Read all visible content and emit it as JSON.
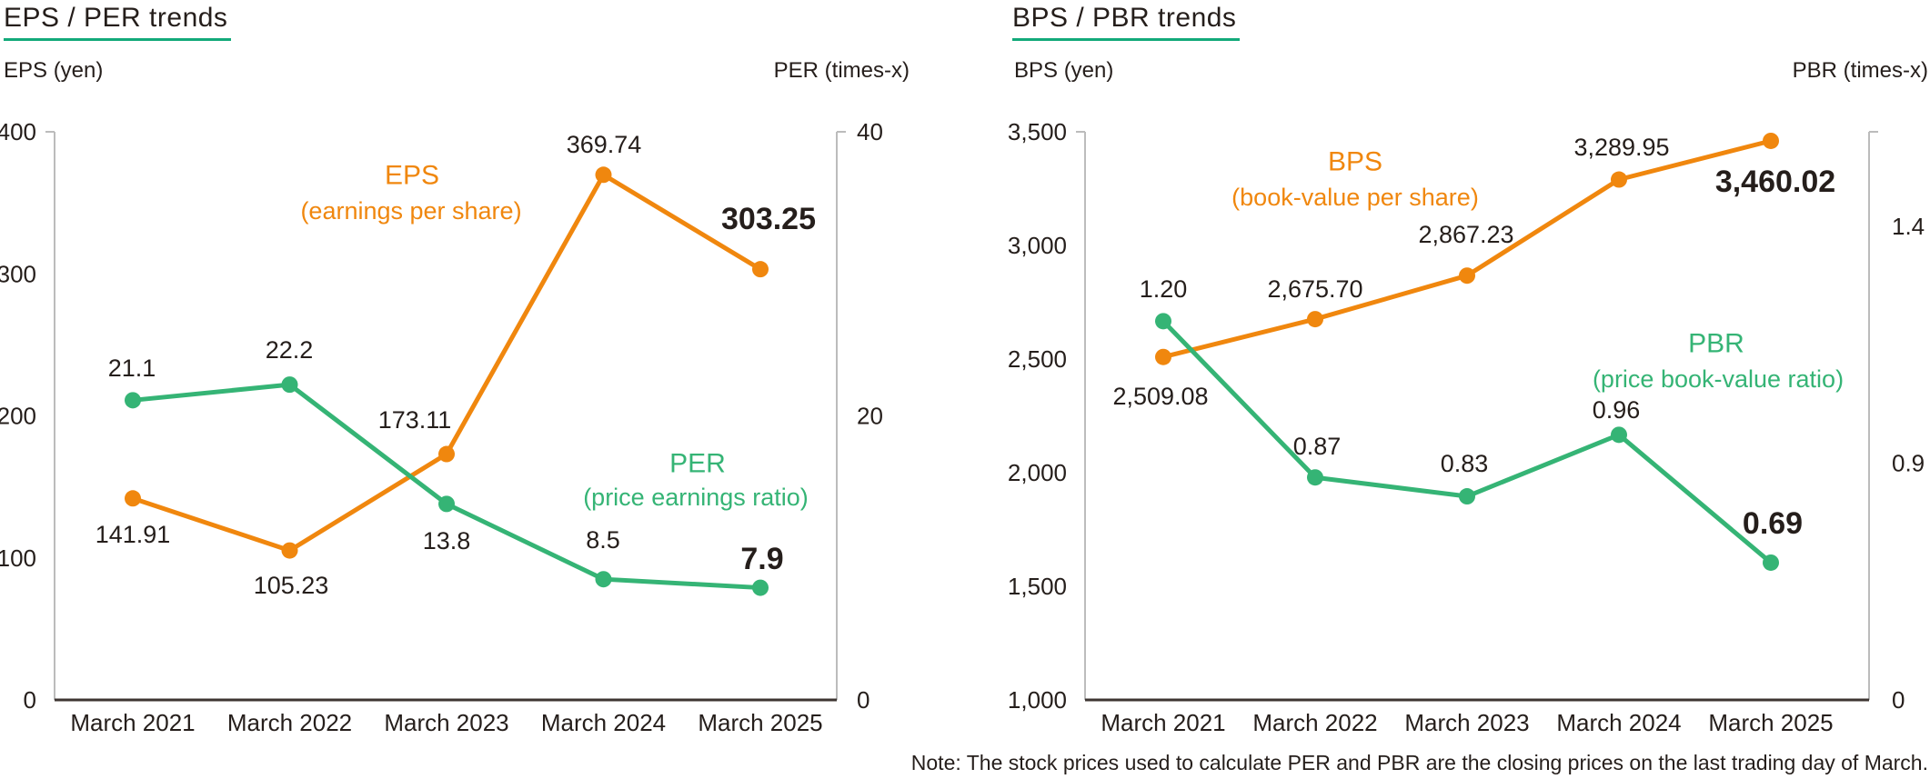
{
  "page": {
    "note": "Note: The stock prices used to calculate PER and PBR are the closing prices on the last trading day of March.",
    "colors": {
      "orange": "#f0870e",
      "green": "#35b475",
      "underline_green": "#12a97a",
      "text_dark": "#251e1b",
      "axis_gray": "#bcbcbc",
      "axis_dark": "#3d3532"
    }
  },
  "chart_data": [
    {
      "id": "eps-per",
      "type": "line",
      "title": "EPS / PER trends",
      "left_axis_label": "EPS (yen)",
      "right_axis_label": "PER (times-x)",
      "categories": [
        "March 2021",
        "March 2022",
        "March 2023",
        "March 2024",
        "March 2025"
      ],
      "left_axis": {
        "range": [
          0,
          400
        ],
        "ticks": [
          {
            "label": "400",
            "value": 400
          },
          {
            "label": "300",
            "value": 300
          },
          {
            "label": "200",
            "value": 200
          },
          {
            "label": "100",
            "value": 100
          },
          {
            "label": "0",
            "value": 0
          }
        ]
      },
      "right_axis": {
        "range": [
          0,
          40
        ],
        "ticks": [
          {
            "label": "40",
            "value": 40
          },
          {
            "label": "20",
            "value": 20
          },
          {
            "label": "0",
            "value": 0
          }
        ]
      },
      "grid": false,
      "series": [
        {
          "name": "EPS",
          "legend_main": "EPS",
          "legend_sub": "(earnings per share)",
          "axis": "left",
          "color": "orange",
          "values": [
            141.91,
            105.23,
            173.11,
            369.74,
            303.25
          ],
          "labels": [
            {
              "text": "141.91",
              "bold": false
            },
            {
              "text": "105.23",
              "bold": false
            },
            {
              "text": "173.11",
              "bold": false
            },
            {
              "text": "369.74",
              "bold": false
            },
            {
              "text": "303.25",
              "bold": true
            }
          ]
        },
        {
          "name": "PER",
          "legend_main": "PER",
          "legend_sub": "(price earnings ratio)",
          "axis": "right",
          "color": "green",
          "values": [
            21.1,
            22.2,
            13.8,
            8.5,
            7.9
          ],
          "labels": [
            {
              "text": "21.1",
              "bold": false
            },
            {
              "text": "22.2",
              "bold": false
            },
            {
              "text": "13.8",
              "bold": false
            },
            {
              "text": "8.5",
              "bold": false
            },
            {
              "text": "7.9",
              "bold": true
            }
          ]
        }
      ]
    },
    {
      "id": "bps-pbr",
      "type": "line",
      "title": "BPS / PBR trends",
      "left_axis_label": "BPS (yen)",
      "right_axis_label": "PBR (times-x)",
      "categories": [
        "March 2021",
        "March 2022",
        "March 2023",
        "March 2024",
        "March 2025"
      ],
      "left_axis": {
        "range": [
          1000,
          3500
        ],
        "ticks": [
          {
            "label": "3,500",
            "value": 3500
          },
          {
            "label": "3,000",
            "value": 3000
          },
          {
            "label": "2,500",
            "value": 2500
          },
          {
            "label": "2,000",
            "value": 2000
          },
          {
            "label": "1,500",
            "value": 1500
          },
          {
            "label": "1,000",
            "value": 1000
          }
        ]
      },
      "right_axis": {
        "range": [
          0.4,
          1.6
        ],
        "ticks": [
          {
            "label": "1.4",
            "value": 1.4
          },
          {
            "label": "0.9",
            "value": 0.9
          },
          {
            "label": "0",
            "value": 0,
            "pin_bottom": true
          }
        ]
      },
      "grid": false,
      "series": [
        {
          "name": "BPS",
          "legend_main": "BPS",
          "legend_sub": "(book-value per share)",
          "axis": "left",
          "color": "orange",
          "values": [
            2509.08,
            2675.7,
            2867.23,
            3289.95,
            3460.02
          ],
          "labels": [
            {
              "text": "2,509.08",
              "bold": false
            },
            {
              "text": "2,675.70",
              "bold": false
            },
            {
              "text": "2,867.23",
              "bold": false
            },
            {
              "text": "3,289.95",
              "bold": false
            },
            {
              "text": "3,460.02",
              "bold": true
            }
          ]
        },
        {
          "name": "PBR",
          "legend_main": "PBR",
          "legend_sub": "(price book-value ratio)",
          "axis": "right",
          "color": "green",
          "values": [
            1.2,
            0.87,
            0.83,
            0.96,
            0.69
          ],
          "labels": [
            {
              "text": "1.20",
              "bold": false
            },
            {
              "text": "0.87",
              "bold": false
            },
            {
              "text": "0.83",
              "bold": false
            },
            {
              "text": "0.96",
              "bold": false
            },
            {
              "text": "0.69",
              "bold": true
            }
          ]
        }
      ]
    }
  ]
}
